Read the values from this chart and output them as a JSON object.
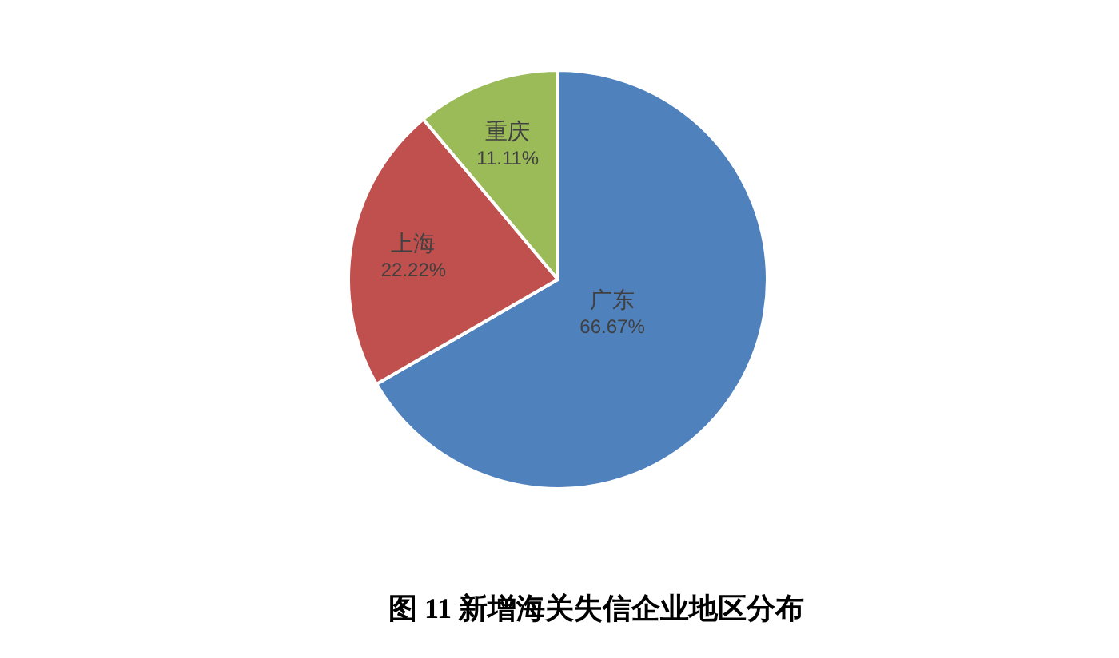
{
  "chart_data": {
    "type": "pie",
    "title": "图 11 新增海关失信企业地区分布",
    "categories": [
      "广东",
      "上海",
      "重庆"
    ],
    "values": [
      66.67,
      22.22,
      11.11
    ],
    "colors": [
      "#4f81bd",
      "#c0504d",
      "#9bbb59"
    ],
    "value_labels": [
      "66.67%",
      "22.22%",
      "11.11%"
    ]
  }
}
